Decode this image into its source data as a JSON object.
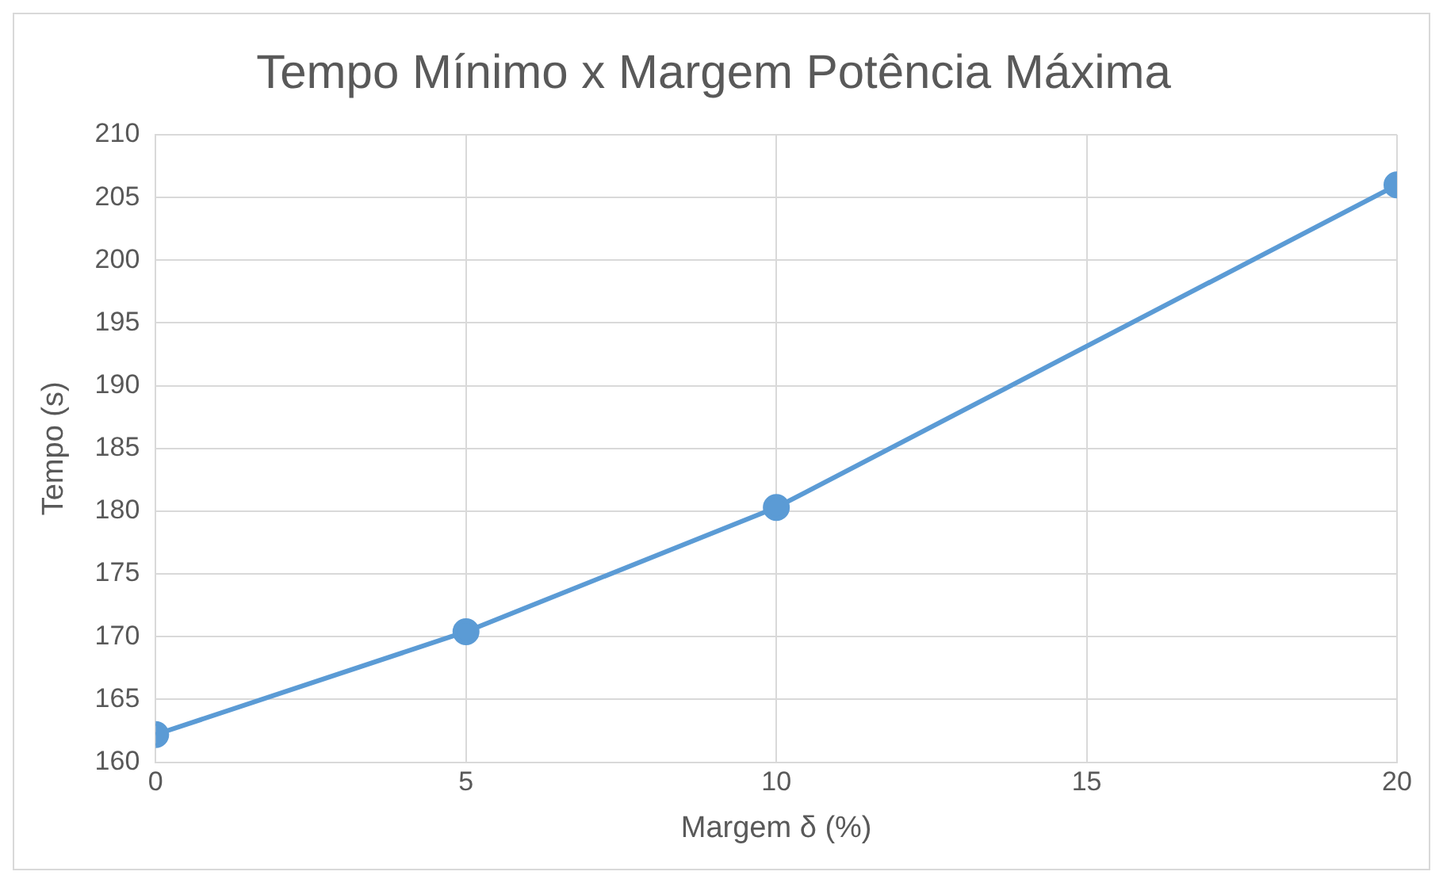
{
  "chart_data": {
    "type": "line",
    "title": "Tempo Mínimo x Margem Potência Máxima",
    "xlabel": "Margem δ (%)",
    "ylabel": "Tempo (s)",
    "x": [
      0,
      5,
      10,
      20
    ],
    "series": [
      {
        "color": "#5b9bd5",
        "values": [
          162.2,
          170.4,
          180.3,
          206
        ]
      }
    ],
    "xlim": [
      0,
      20
    ],
    "xticks": [
      0,
      5,
      10,
      15,
      20
    ],
    "ylim": [
      160,
      210
    ],
    "yticks": [
      160,
      165,
      170,
      175,
      180,
      185,
      190,
      195,
      200,
      205,
      210
    ],
    "grid": true,
    "legend": false,
    "marker": "circle",
    "line_style": "solid"
  }
}
